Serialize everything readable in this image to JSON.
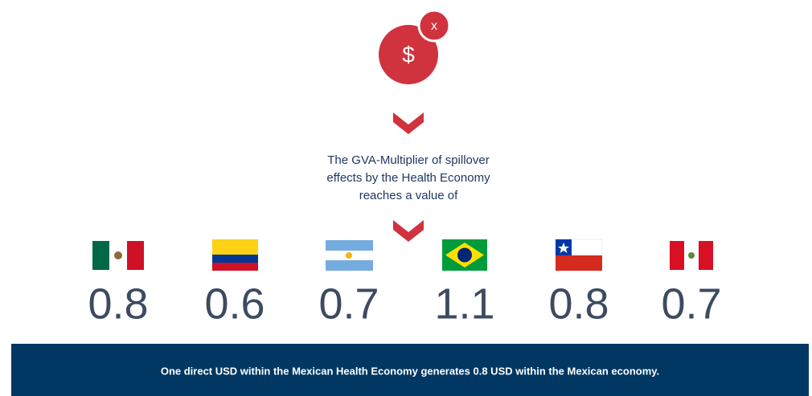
{
  "icon": {
    "symbol": "$",
    "badge": "x"
  },
  "description": [
    "The GVA-Multiplier of spillover",
    "effects by the Health Economy",
    "reaches a value of"
  ],
  "multipliers": [
    0.8,
    0.6,
    0.7,
    1.1,
    0.8,
    0.7
  ],
  "footer": "One direct USD within the Mexican Health Economy generates 0.8 USD within the Mexican economy."
}
